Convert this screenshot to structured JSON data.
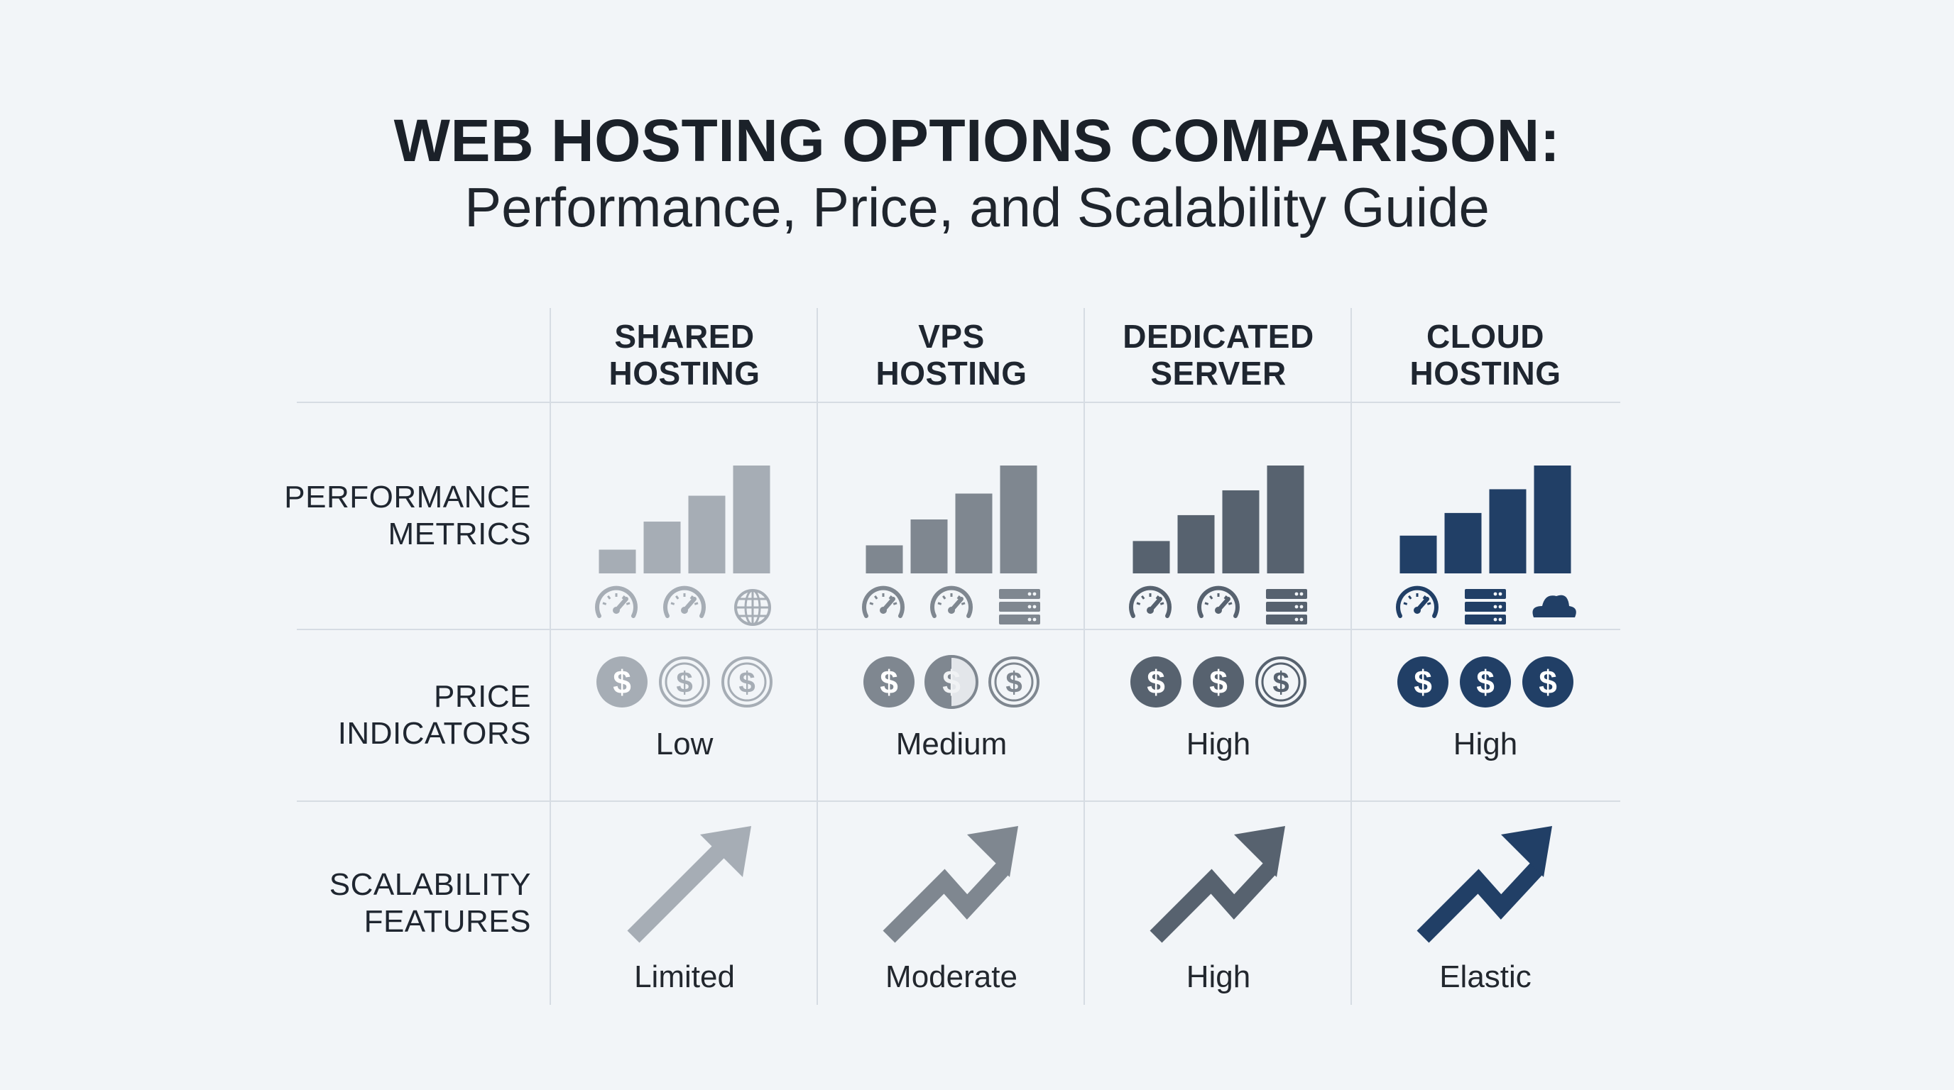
{
  "title": {
    "main": "WEB HOSTING OPTIONS COMPARISON:",
    "subtitle": "Performance, Price, and Scalability Guide"
  },
  "columns": [
    {
      "line1": "SHARED",
      "line2": "HOSTING",
      "color": "#a6adb5",
      "performance_bars": [
        0.22,
        0.48,
        0.72,
        1.0
      ],
      "metric_icons": [
        "speedometer-icon",
        "speedometer-icon",
        "globe-icon"
      ],
      "price": {
        "label": "Low",
        "filled": 1,
        "half": 0
      },
      "scalability": {
        "label": "Limited",
        "shape": "straight"
      }
    },
    {
      "line1": "VPS",
      "line2": "HOSTING",
      "color": "#7f8790",
      "performance_bars": [
        0.26,
        0.5,
        0.74,
        1.0
      ],
      "metric_icons": [
        "speedometer-icon",
        "speedometer-icon",
        "server-icon"
      ],
      "price": {
        "label": "Medium",
        "filled": 1,
        "half": 1
      },
      "scalability": {
        "label": "Moderate",
        "shape": "zigzag"
      }
    },
    {
      "line1": "DEDICATED",
      "line2": "SERVER",
      "color": "#57626f",
      "performance_bars": [
        0.3,
        0.54,
        0.77,
        1.0
      ],
      "metric_icons": [
        "speedometer-icon",
        "speedometer-icon",
        "server-icon"
      ],
      "price": {
        "label": "High",
        "filled": 2,
        "half": 0
      },
      "scalability": {
        "label": "High",
        "shape": "zigzag"
      }
    },
    {
      "line1": "CLOUD",
      "line2": "HOSTING",
      "color": "#213f66",
      "performance_bars": [
        0.35,
        0.56,
        0.78,
        1.0
      ],
      "metric_icons": [
        "speedometer-icon",
        "server-icon",
        "cloud-icon"
      ],
      "price": {
        "label": "High",
        "filled": 3,
        "half": 0
      },
      "scalability": {
        "label": "Elastic",
        "shape": "zigzag"
      }
    }
  ],
  "rows": [
    {
      "line1": "PERFORMANCE",
      "line2": "METRICS"
    },
    {
      "line1": "PRICE",
      "line2": "INDICATORS"
    },
    {
      "line1": "SCALABILITY",
      "line2": "FEATURES"
    }
  ]
}
